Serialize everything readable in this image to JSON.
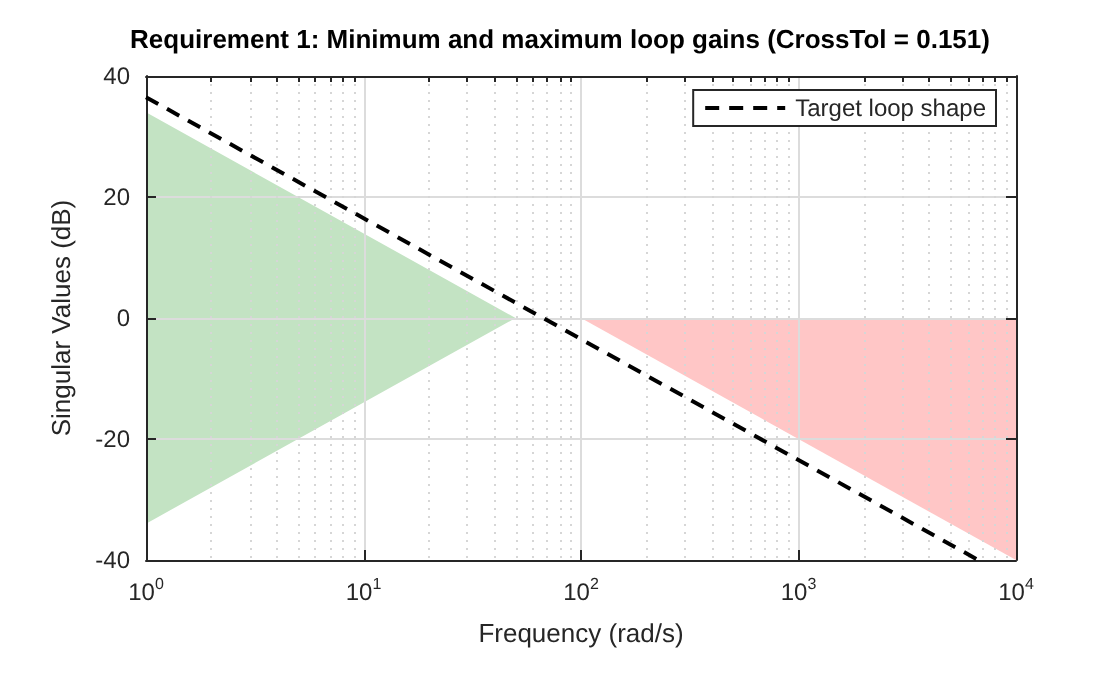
{
  "chart_data": {
    "type": "line",
    "title": "Requirement 1: Minimum and maximum loop gains (CrossTol = 0.151)",
    "xlabel": "Frequency (rad/s)",
    "ylabel": "Singular Values (dB)",
    "log": "x",
    "grid": true,
    "legend": "top right",
    "xlim": [
      1,
      10000
    ],
    "ylim": [
      -40,
      40
    ],
    "xticks": [
      {
        "value": 1,
        "label": "10$^{0}$"
      },
      {
        "value": 10,
        "label": "10$^{1}$"
      },
      {
        "value": 100,
        "label": "10$^{2}$"
      },
      {
        "value": 1000,
        "label": "10$^{3}$"
      },
      {
        "value": 10000,
        "label": "10$^{4}$"
      }
    ],
    "yticks": [
      -40,
      -20,
      0,
      20,
      40
    ],
    "series": [
      {
        "type": "area",
        "color": "#c3e3c3",
        "x": [
          1,
          50,
          1
        ],
        "values": [
          34,
          0,
          -34
        ]
      },
      {
        "type": "area",
        "color": "#ffc6c6",
        "x": [
          100,
          10000
        ],
        "values": [
          0,
          -40
        ]
      },
      {
        "type": "line",
        "name": "Target loop shape",
        "color": "#000000",
        "line_style": "dashed",
        "marker": "none",
        "x": [
          1,
          6700
        ],
        "values": [
          36.5,
          -40
        ]
      }
    ]
  }
}
